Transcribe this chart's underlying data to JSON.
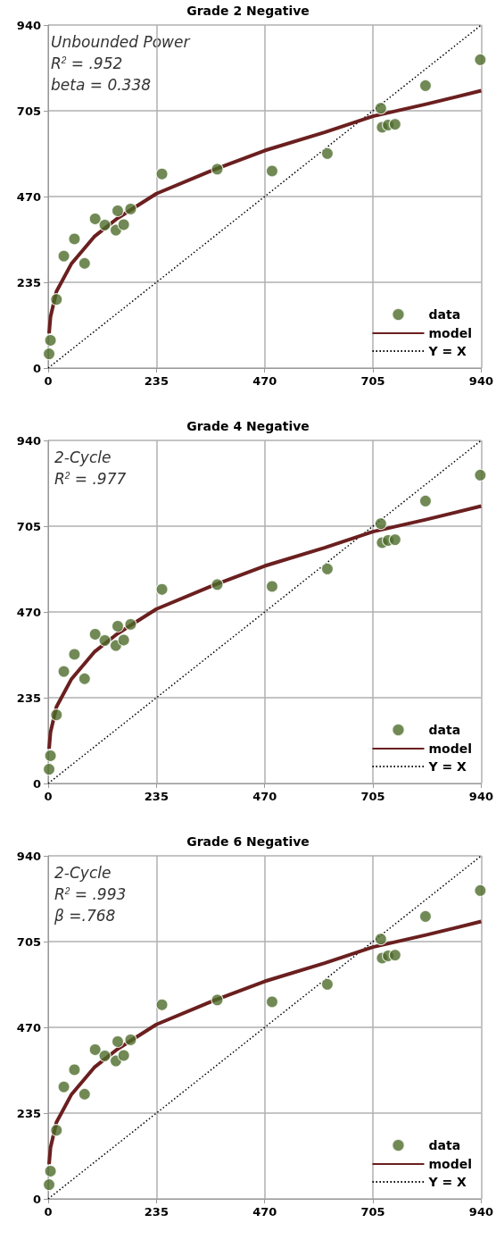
{
  "chart_data": [
    {
      "type": "scatter",
      "title": "Grade 2 Negative",
      "xlim": [
        0,
        940
      ],
      "ylim": [
        0,
        940
      ],
      "xticks": [
        0,
        235,
        470,
        705,
        940
      ],
      "yticks": [
        0,
        235,
        470,
        705,
        940
      ],
      "grid": true,
      "legend": "bottom right",
      "annotations": [
        "Unbounded Power",
        "R$^{2}$ = .952",
        "beta = 0.338"
      ],
      "series": [
        {
          "name": "data",
          "marker": "circle",
          "color": "#4e6b2a",
          "x": [
            2,
            5,
            18,
            34,
            57,
            79,
            102,
            123,
            147,
            151,
            164,
            179,
            247,
            367,
            486,
            606,
            722,
            725,
            738,
            753,
            819,
            938
          ],
          "values": [
            39,
            76,
            188,
            307,
            354,
            287,
            409,
            392,
            378,
            431,
            393,
            436,
            532,
            545,
            540,
            588,
            712,
            660,
            666,
            668,
            774,
            845
          ]
        },
        {
          "name": "model",
          "type": "line",
          "marker": "none",
          "color": "#6b1f1f",
          "x": [
            2,
            5,
            18,
            50,
            100,
            150,
            235,
            353,
            470,
            600,
            705,
            820,
            940
          ],
          "values": [
            95,
            140,
            210,
            285,
            360,
            410,
            478,
            540,
            596,
            646,
            690,
            723,
            760
          ]
        },
        {
          "name": "Y = X",
          "type": "line",
          "marker": "none",
          "line_style": "dotted",
          "color": "#000000",
          "x": [
            0,
            940
          ],
          "values": [
            0,
            940
          ]
        }
      ]
    },
    {
      "type": "scatter",
      "title": "Grade 4 Negative",
      "xlim": [
        0,
        940
      ],
      "ylim": [
        0,
        940
      ],
      "xticks": [
        0,
        235,
        470,
        705,
        940
      ],
      "yticks": [
        0,
        235,
        470,
        705,
        940
      ],
      "grid": true,
      "legend": "bottom right",
      "annotations": [
        "2-Cycle",
        "R$^{2}$ = .977"
      ],
      "series": [
        {
          "name": "data",
          "marker": "circle",
          "color": "#4e6b2a",
          "x": [
            2,
            5,
            18,
            34,
            57,
            79,
            102,
            123,
            147,
            151,
            164,
            179,
            247,
            367,
            486,
            606,
            722,
            725,
            738,
            753,
            819,
            938
          ],
          "values": [
            39,
            76,
            188,
            307,
            354,
            287,
            409,
            392,
            378,
            431,
            393,
            436,
            532,
            545,
            540,
            588,
            712,
            660,
            666,
            668,
            774,
            845
          ]
        },
        {
          "name": "model",
          "type": "line",
          "marker": "none",
          "color": "#6b1f1f",
          "x": [
            2,
            5,
            18,
            50,
            100,
            150,
            235,
            353,
            470,
            600,
            705,
            820,
            940
          ],
          "values": [
            95,
            140,
            210,
            285,
            360,
            410,
            478,
            540,
            596,
            646,
            690,
            723,
            760
          ]
        },
        {
          "name": "Y = X",
          "type": "line",
          "marker": "none",
          "line_style": "dotted",
          "color": "#000000",
          "x": [
            0,
            940
          ],
          "values": [
            0,
            940
          ]
        }
      ]
    },
    {
      "type": "scatter",
      "title": "Grade 6 Negative",
      "xlim": [
        0,
        940
      ],
      "ylim": [
        0,
        940
      ],
      "xticks": [
        0,
        235,
        470,
        705,
        940
      ],
      "yticks": [
        0,
        235,
        470,
        705,
        940
      ],
      "grid": true,
      "legend": "bottom right",
      "annotations": [
        "2-Cycle",
        "R$^{2}$ = .993",
        "β =.768"
      ],
      "series": [
        {
          "name": "data",
          "marker": "circle",
          "color": "#4e6b2a",
          "x": [
            2,
            5,
            18,
            34,
            57,
            79,
            102,
            123,
            147,
            151,
            164,
            179,
            247,
            367,
            486,
            606,
            722,
            725,
            738,
            753,
            819,
            938
          ],
          "values": [
            39,
            76,
            188,
            307,
            354,
            287,
            409,
            392,
            378,
            431,
            393,
            436,
            532,
            545,
            540,
            588,
            712,
            660,
            666,
            668,
            774,
            845
          ]
        },
        {
          "name": "model",
          "type": "line",
          "marker": "none",
          "color": "#6b1f1f",
          "x": [
            2,
            5,
            18,
            50,
            100,
            150,
            235,
            353,
            470,
            600,
            705,
            820,
            940
          ],
          "values": [
            95,
            140,
            210,
            285,
            360,
            410,
            478,
            540,
            596,
            646,
            690,
            723,
            760
          ]
        },
        {
          "name": "Y = X",
          "type": "line",
          "marker": "none",
          "line_style": "dotted",
          "color": "#000000",
          "x": [
            0,
            940
          ],
          "values": [
            0,
            940
          ]
        }
      ]
    }
  ]
}
